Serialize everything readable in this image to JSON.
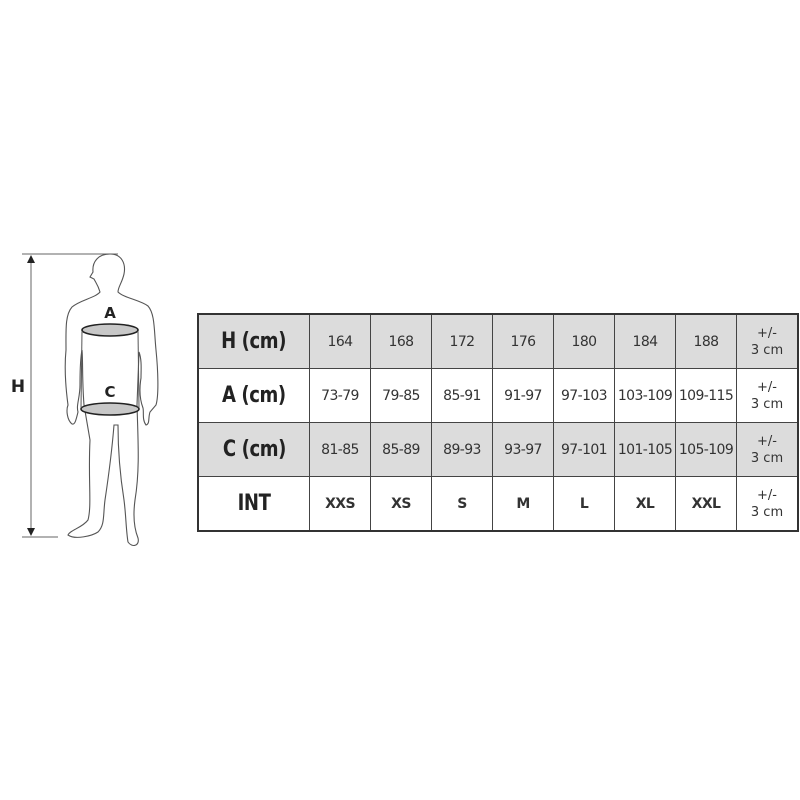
{
  "figure": {
    "height_label": "H",
    "chest_label": "A",
    "waist_label": "C",
    "band_fill": "#c8c8c8"
  },
  "table": {
    "shade_color": "#dcdcdc",
    "rows": [
      {
        "header": "H (cm)",
        "shaded": true,
        "values": [
          "164",
          "168",
          "172",
          "176",
          "180",
          "184",
          "188"
        ],
        "tol_1": "+/-",
        "tol_2": "3 cm"
      },
      {
        "header": "A (cm)",
        "shaded": false,
        "values": [
          "73-79",
          "79-85",
          "85-91",
          "91-97",
          "97-103",
          "103-109",
          "109-115"
        ],
        "tol_1": "+/-",
        "tol_2": "3 cm"
      },
      {
        "header": "C (cm)",
        "shaded": true,
        "values": [
          "81-85",
          "85-89",
          "89-93",
          "93-97",
          "97-101",
          "101-105",
          "105-109"
        ],
        "tol_1": "+/-",
        "tol_2": "3 cm"
      },
      {
        "header": "INT",
        "shaded": false,
        "values": [
          "XXS",
          "XS",
          "S",
          "M",
          "L",
          "XL",
          "XXL"
        ],
        "tol_1": "+/-",
        "tol_2": "3 cm"
      }
    ]
  }
}
